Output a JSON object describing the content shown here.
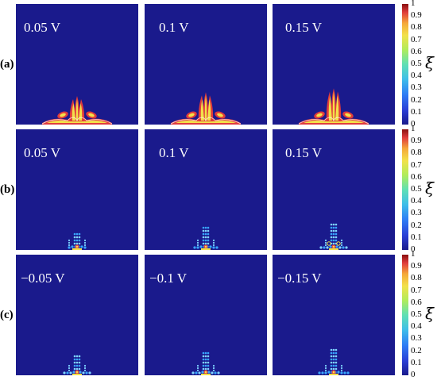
{
  "rows": [
    {
      "label": "(a)",
      "panels": [
        "0.05 V",
        "0.1 V",
        "0.15 V"
      ]
    },
    {
      "label": "(b)",
      "panels": [
        "0.05 V",
        "0.1 V",
        "0.15 V"
      ]
    },
    {
      "label": "(c)",
      "panels": [
        "−0.05 V",
        "−0.1 V",
        "−0.15 V"
      ]
    }
  ],
  "colorbar": {
    "title": "ξ",
    "ticks": [
      "0",
      "0.1",
      "0.2",
      "0.3",
      "0.4",
      "0.5",
      "0.6",
      "0.7",
      "0.8",
      "0.9",
      "1"
    ]
  },
  "colors": {
    "background": "#1a1a8c",
    "deposit_outer": "#e03c3c",
    "deposit_inner": "#f2e14a",
    "deposit_highlight": "#ffffff",
    "dendrite_light": "#7fd4ff",
    "dendrite_mid": "#39a6ff"
  }
}
